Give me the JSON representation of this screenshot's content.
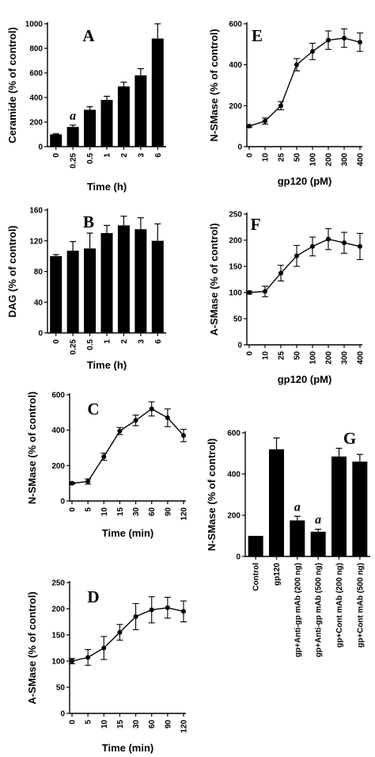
{
  "chart_data": [
    {
      "id": "A",
      "type": "bar",
      "panel_label": "A",
      "ylabel": "Ceramide (% of control)",
      "xlabel": "Time (h)",
      "ylim": [
        0,
        1000
      ],
      "yticks": [
        0,
        200,
        400,
        600,
        800,
        1000
      ],
      "categories": [
        "0",
        "0.25",
        "0.5",
        "1",
        "2",
        "3",
        "6"
      ],
      "values": [
        100,
        160,
        300,
        380,
        490,
        580,
        880
      ],
      "errors": [
        5,
        15,
        25,
        30,
        35,
        55,
        120
      ],
      "annotations": [
        {
          "category": "0.25",
          "text": "a"
        }
      ]
    },
    {
      "id": "B",
      "type": "bar",
      "panel_label": "B",
      "ylabel": "DAG (% of control)",
      "xlabel": "Time (h)",
      "ylim": [
        0,
        160
      ],
      "yticks": [
        0,
        40,
        80,
        120,
        160
      ],
      "categories": [
        "0",
        "0.25",
        "0.5",
        "1",
        "2",
        "3",
        "6"
      ],
      "values": [
        100,
        107,
        110,
        130,
        140,
        135,
        120
      ],
      "errors": [
        2,
        12,
        20,
        10,
        12,
        15,
        22
      ],
      "annotations": []
    },
    {
      "id": "C",
      "type": "line",
      "panel_label": "C",
      "ylabel": "N-SMase (% of control)",
      "xlabel": "Time (min)",
      "ylim": [
        0,
        600
      ],
      "yticks": [
        0,
        200,
        400,
        600
      ],
      "categories": [
        "0",
        "5",
        "10",
        "15",
        "30",
        "60",
        "90",
        "120"
      ],
      "values": [
        100,
        110,
        250,
        395,
        455,
        520,
        470,
        370
      ],
      "errors": [
        5,
        15,
        20,
        20,
        30,
        40,
        50,
        35
      ],
      "annotations": []
    },
    {
      "id": "D",
      "type": "line",
      "panel_label": "D",
      "ylabel": "A-SMase (% of control)",
      "xlabel": "Time (min)",
      "ylim": [
        0,
        250
      ],
      "yticks": [
        0,
        50,
        100,
        150,
        200,
        250
      ],
      "categories": [
        "0",
        "5",
        "10",
        "15",
        "30",
        "60",
        "90",
        "120"
      ],
      "values": [
        100,
        107,
        125,
        155,
        185,
        198,
        202,
        195
      ],
      "errors": [
        5,
        15,
        22,
        15,
        25,
        25,
        20,
        20
      ],
      "annotations": []
    },
    {
      "id": "E",
      "type": "line",
      "panel_label": "E",
      "ylabel": "N-SMase (% of control)",
      "xlabel": "gp120 (pM)",
      "ylim": [
        0,
        600
      ],
      "yticks": [
        0,
        200,
        400,
        600
      ],
      "categories": [
        "0",
        "10",
        "25",
        "50",
        "100",
        "200",
        "300",
        "400"
      ],
      "values": [
        100,
        125,
        200,
        400,
        465,
        520,
        530,
        510
      ],
      "errors": [
        5,
        15,
        20,
        30,
        40,
        45,
        45,
        45
      ],
      "annotations": []
    },
    {
      "id": "F",
      "type": "line",
      "panel_label": "F",
      "ylabel": "A-SMase (% of control)",
      "xlabel": "gp120 (pM)",
      "ylim": [
        0,
        250
      ],
      "yticks": [
        0,
        50,
        100,
        150,
        200,
        250
      ],
      "categories": [
        "0",
        "10",
        "25",
        "50",
        "100",
        "200",
        "300",
        "400"
      ],
      "values": [
        100,
        102,
        137,
        170,
        188,
        202,
        195,
        188
      ],
      "errors": [
        3,
        10,
        15,
        20,
        18,
        20,
        20,
        25
      ],
      "annotations": []
    },
    {
      "id": "G",
      "type": "bar",
      "panel_label": "G",
      "ylabel": "N-SMase (% of control)",
      "xlabel": "",
      "ylim": [
        0,
        600
      ],
      "yticks": [
        0,
        200,
        400,
        600
      ],
      "categories": [
        "Control",
        "gp120",
        "gp+Anti-gp mAb (200 ng)",
        "gp+Anti-gp mAb (500 ng)",
        "gp+Cont mAb (200 ng)",
        "gp+Cont mAb (500 ng)"
      ],
      "values": [
        100,
        520,
        175,
        120,
        485,
        460
      ],
      "errors": [
        0,
        55,
        20,
        12,
        40,
        35
      ],
      "annotations": [
        {
          "category": "gp+Anti-gp mAb (200 ng)",
          "text": "a"
        },
        {
          "category": "gp+Anti-gp mAb (500 ng)",
          "text": "a"
        }
      ]
    }
  ]
}
